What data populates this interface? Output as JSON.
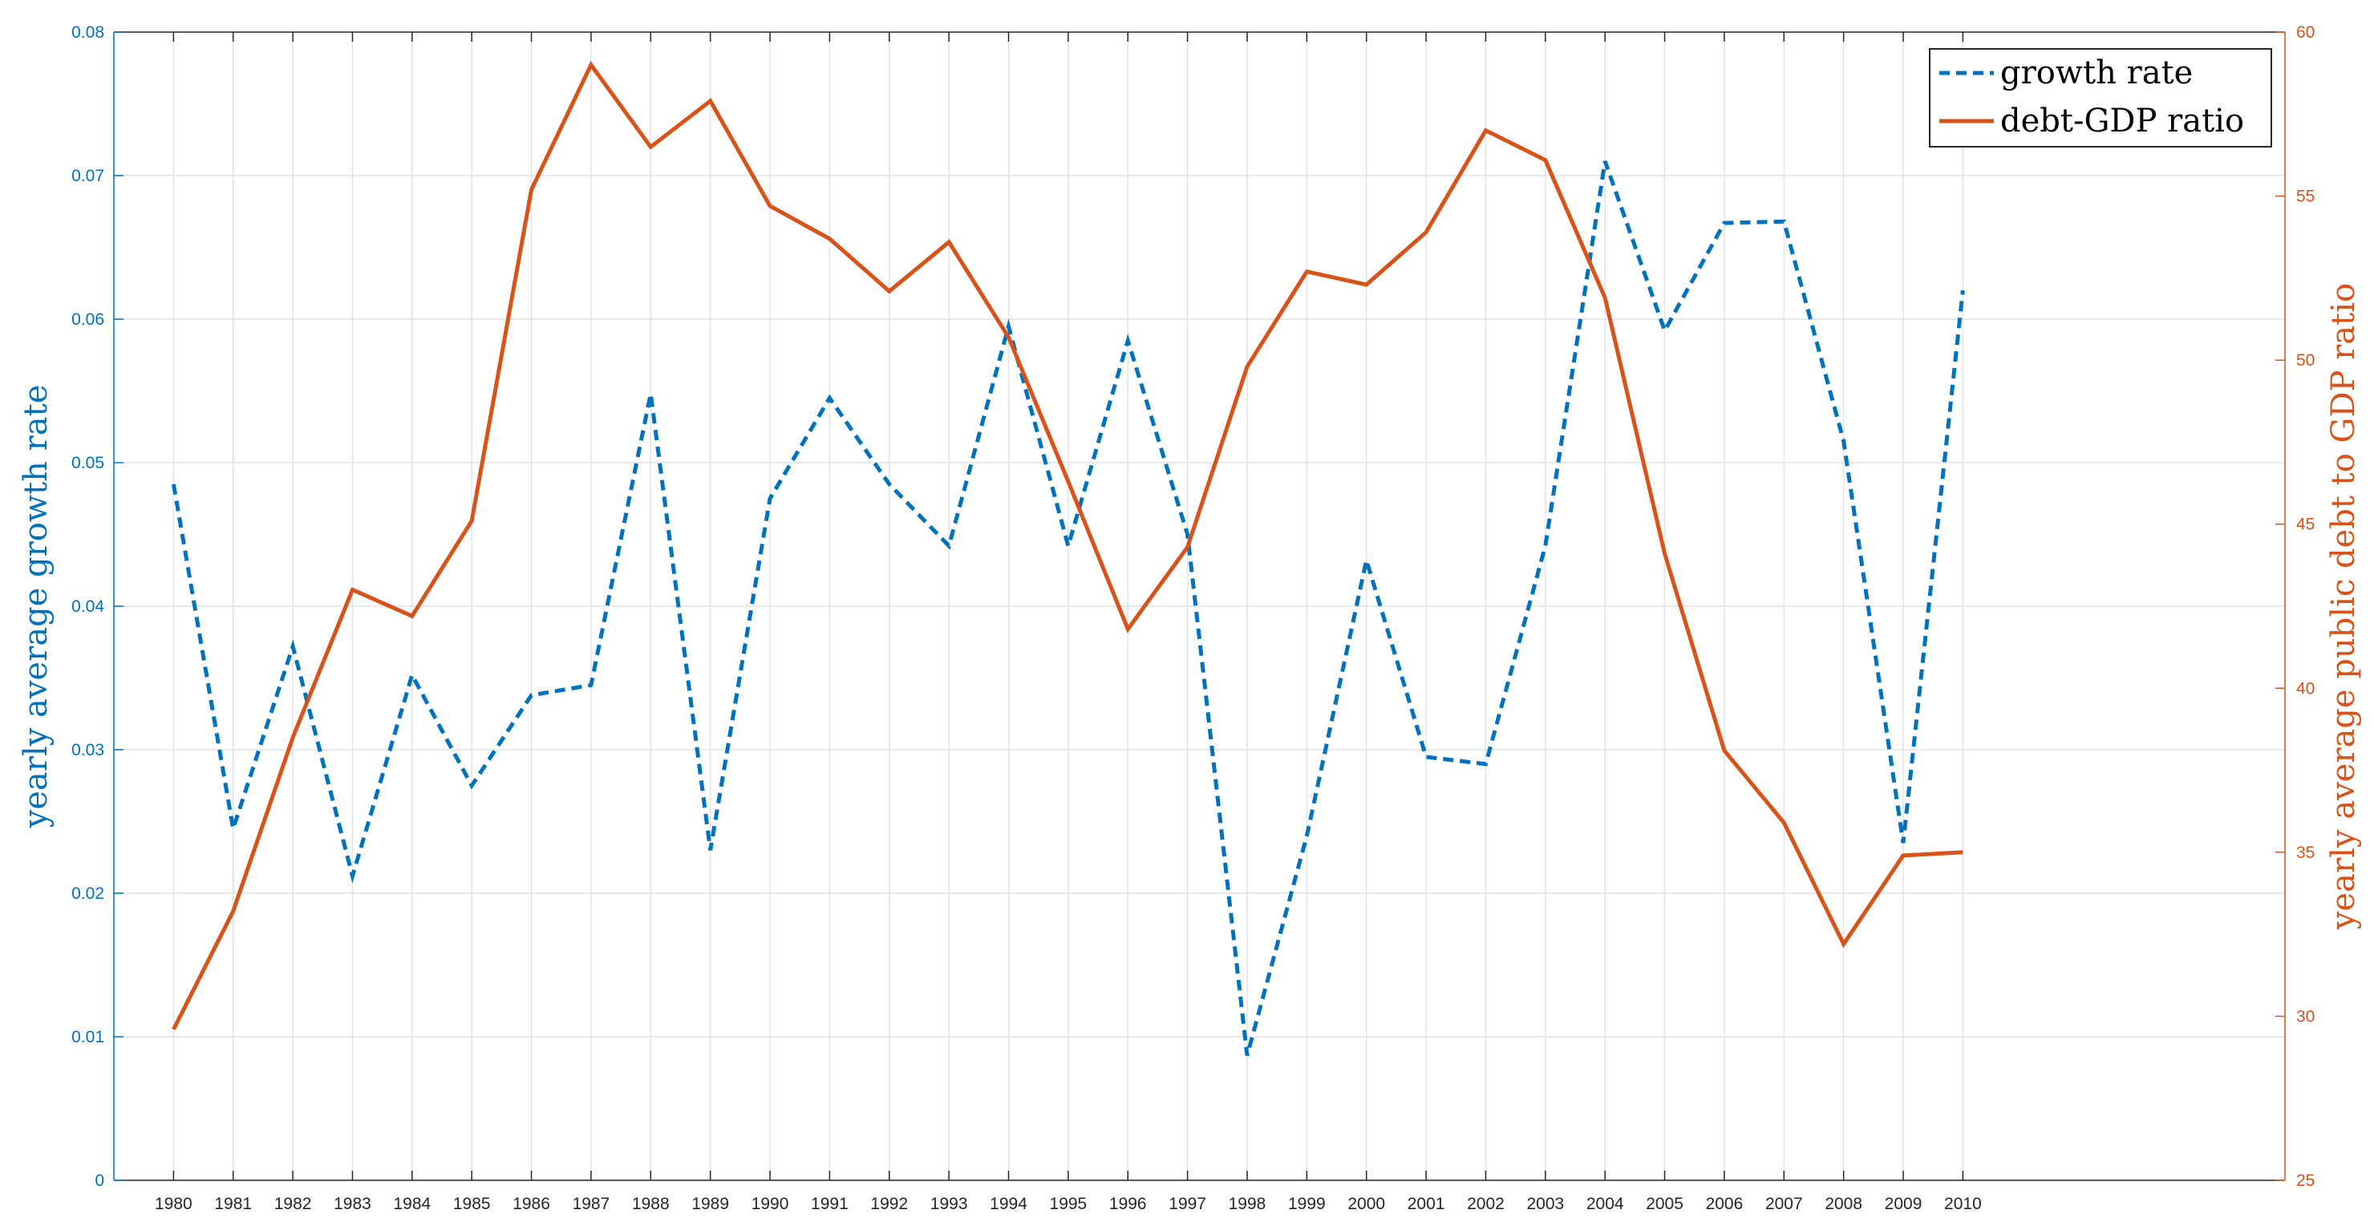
{
  "chart_data": {
    "type": "line",
    "title": "",
    "xlabel": "",
    "ylabel_left": "yearly average growth rate",
    "ylabel_right": "yearly average public debt to GDP ratio",
    "x": [
      1980,
      1981,
      1982,
      1983,
      1984,
      1985,
      1986,
      1987,
      1988,
      1989,
      1990,
      1991,
      1992,
      1993,
      1994,
      1995,
      1996,
      1997,
      1998,
      1999,
      2000,
      2001,
      2002,
      2003,
      2004,
      2005,
      2006,
      2007,
      2008,
      2009,
      2010
    ],
    "x_tick_labels": [
      "1980",
      "1981",
      "1982",
      "1983",
      "1984",
      "1985",
      "1986",
      "1987",
      "1988",
      "1989",
      "1990",
      "1991",
      "1992",
      "1993",
      "1994",
      "1995",
      "1996",
      "1997",
      "1998",
      "1999",
      "2000",
      "2001",
      "2002",
      "2003",
      "2004",
      "2005",
      "2006",
      "2007",
      "2008",
      "2009",
      "2010"
    ],
    "xlim": [
      1979.0,
      2015.4
    ],
    "ylim_left": [
      0,
      0.08
    ],
    "ylim_right": [
      25,
      60
    ],
    "left_ticks": [
      0,
      0.01,
      0.02,
      0.03,
      0.04,
      0.05,
      0.06,
      0.07,
      0.08
    ],
    "left_tick_labels": [
      "0",
      "0.01",
      "0.02",
      "0.03",
      "0.04",
      "0.05",
      "0.06",
      "0.07",
      "0.08"
    ],
    "right_ticks": [
      25,
      30,
      35,
      40,
      45,
      50,
      55,
      60
    ],
    "right_tick_labels": [
      "25",
      "30",
      "35",
      "40",
      "45",
      "50",
      "55",
      "60"
    ],
    "grid": true,
    "legend_position": "top-right",
    "series": [
      {
        "name": "growth rate",
        "axis": "left",
        "style": "dashed",
        "color": "#0072BD",
        "values": [
          0.0485,
          0.0245,
          0.0372,
          0.0212,
          0.0352,
          0.0275,
          0.0338,
          0.0345,
          0.0548,
          0.023,
          0.0475,
          0.0545,
          0.0485,
          0.0442,
          0.0595,
          0.0442,
          0.0585,
          0.045,
          0.0087,
          0.024,
          0.0432,
          0.0295,
          0.029,
          0.0442,
          0.071,
          0.0592,
          0.0667,
          0.0668,
          0.0515,
          0.0235,
          0.062
        ]
      },
      {
        "name": "debt-GDP ratio",
        "axis": "right",
        "style": "solid",
        "color": "#D95319",
        "values": [
          29.6,
          33.2,
          38.5,
          43.0,
          42.2,
          45.1,
          55.2,
          59.0,
          56.5,
          57.9,
          54.7,
          53.7,
          52.1,
          53.6,
          50.7,
          46.3,
          41.8,
          44.3,
          49.8,
          52.7,
          52.3,
          53.9,
          57.0,
          56.1,
          51.9,
          44.1,
          38.1,
          35.9,
          32.2,
          34.9,
          35.0
        ]
      }
    ]
  }
}
